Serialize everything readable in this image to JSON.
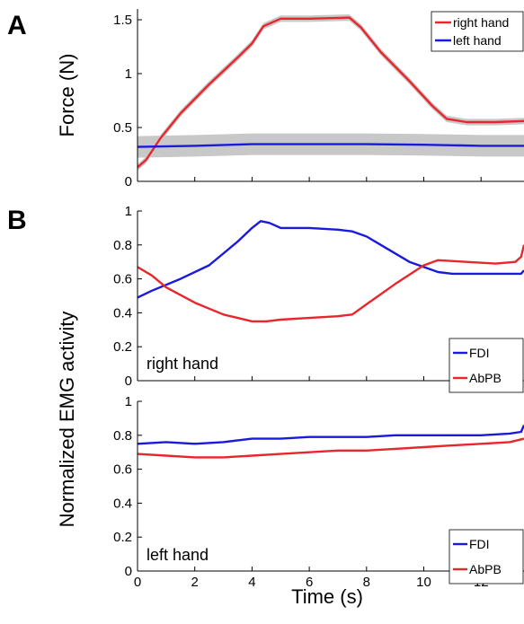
{
  "figure": {
    "panel_a_letter": "A",
    "panel_b_letter": "B",
    "shared_ylabel_b": "Normalized EMG activity",
    "shared_xlabel": "Time (s)"
  },
  "colors": {
    "red": "#e8262b",
    "blue": "#1a1adc",
    "band": "#c8c8c8"
  },
  "chart_data": [
    {
      "id": "force",
      "type": "line",
      "ylabel": "Force (N)",
      "xlabel": "",
      "xlim": [
        0,
        13.5
      ],
      "ylim": [
        0,
        1.6
      ],
      "yticks": [
        0,
        0.5,
        1,
        1.5
      ],
      "ytick_labels": [
        "0",
        "0.5",
        "1",
        "1.5"
      ],
      "xticks": [
        0,
        2,
        4,
        6,
        8,
        10,
        12
      ],
      "legend_position": "top-right",
      "series": [
        {
          "name": "right hand",
          "color": "red",
          "band_width": 0.03,
          "points": [
            [
              0,
              0.13
            ],
            [
              0.3,
              0.2
            ],
            [
              0.8,
              0.4
            ],
            [
              1.5,
              0.63
            ],
            [
              2.5,
              0.9
            ],
            [
              3.5,
              1.15
            ],
            [
              4.0,
              1.28
            ],
            [
              4.4,
              1.44
            ],
            [
              5.0,
              1.51
            ],
            [
              6.0,
              1.51
            ],
            [
              7.4,
              1.52
            ],
            [
              7.8,
              1.43
            ],
            [
              8.5,
              1.2
            ],
            [
              9.5,
              0.93
            ],
            [
              10.3,
              0.7
            ],
            [
              10.8,
              0.58
            ],
            [
              11.5,
              0.55
            ],
            [
              12.5,
              0.55
            ],
            [
              13.5,
              0.56
            ]
          ]
        },
        {
          "name": "left hand",
          "color": "blue",
          "band_width": 0.1,
          "points": [
            [
              0,
              0.32
            ],
            [
              2,
              0.33
            ],
            [
              4,
              0.345
            ],
            [
              6,
              0.345
            ],
            [
              8,
              0.345
            ],
            [
              10,
              0.34
            ],
            [
              12,
              0.33
            ],
            [
              13.5,
              0.33
            ]
          ]
        }
      ]
    },
    {
      "id": "emg-right",
      "type": "line",
      "inner_label": "right hand",
      "xlim": [
        0,
        13.5
      ],
      "ylim": [
        0,
        1
      ],
      "yticks": [
        0,
        0.2,
        0.4,
        0.6,
        0.8,
        1
      ],
      "ytick_labels": [
        "0",
        "0.2",
        "0.4",
        "0.6",
        "0.8",
        "1"
      ],
      "xticks": [
        0,
        2,
        4,
        6,
        8,
        10,
        12
      ],
      "legend_position": "bottom-right",
      "series": [
        {
          "name": "FDI",
          "color": "blue",
          "points": [
            [
              0,
              0.49
            ],
            [
              0.5,
              0.53
            ],
            [
              1.5,
              0.6
            ],
            [
              2.5,
              0.68
            ],
            [
              3.5,
              0.82
            ],
            [
              4.0,
              0.9
            ],
            [
              4.3,
              0.94
            ],
            [
              4.6,
              0.93
            ],
            [
              5.0,
              0.9
            ],
            [
              6.0,
              0.9
            ],
            [
              7.0,
              0.89
            ],
            [
              7.5,
              0.88
            ],
            [
              8.0,
              0.85
            ],
            [
              8.5,
              0.8
            ],
            [
              9.5,
              0.7
            ],
            [
              10.5,
              0.64
            ],
            [
              11.0,
              0.63
            ],
            [
              12.0,
              0.63
            ],
            [
              13.4,
              0.63
            ],
            [
              13.5,
              0.65
            ]
          ]
        },
        {
          "name": "AbPB",
          "color": "red",
          "points": [
            [
              0,
              0.67
            ],
            [
              0.5,
              0.62
            ],
            [
              1.0,
              0.55
            ],
            [
              2.0,
              0.46
            ],
            [
              3.0,
              0.39
            ],
            [
              3.5,
              0.37
            ],
            [
              4.0,
              0.35
            ],
            [
              4.5,
              0.35
            ],
            [
              5.0,
              0.36
            ],
            [
              6.0,
              0.37
            ],
            [
              7.0,
              0.38
            ],
            [
              7.5,
              0.39
            ],
            [
              8.0,
              0.45
            ],
            [
              9.0,
              0.57
            ],
            [
              10.0,
              0.68
            ],
            [
              10.5,
              0.71
            ],
            [
              11.5,
              0.7
            ],
            [
              12.5,
              0.69
            ],
            [
              13.2,
              0.7
            ],
            [
              13.4,
              0.73
            ],
            [
              13.5,
              0.8
            ]
          ]
        }
      ]
    },
    {
      "id": "emg-left",
      "type": "line",
      "inner_label": "left hand",
      "xlim": [
        0,
        13.5
      ],
      "ylim": [
        0,
        1
      ],
      "yticks": [
        0,
        0.2,
        0.4,
        0.6,
        0.8,
        1
      ],
      "ytick_labels": [
        "0",
        "0.2",
        "0.4",
        "0.6",
        "0.8",
        "1"
      ],
      "xticks": [
        0,
        2,
        4,
        6,
        8,
        10,
        12
      ],
      "xtick_labels": [
        "0",
        "2",
        "4",
        "6",
        "8",
        "10",
        "12"
      ],
      "legend_position": "bottom-right",
      "series": [
        {
          "name": "FDI",
          "color": "blue",
          "points": [
            [
              0,
              0.75
            ],
            [
              1,
              0.76
            ],
            [
              2,
              0.75
            ],
            [
              3,
              0.76
            ],
            [
              4,
              0.78
            ],
            [
              5,
              0.78
            ],
            [
              6,
              0.79
            ],
            [
              7,
              0.79
            ],
            [
              8,
              0.79
            ],
            [
              9,
              0.8
            ],
            [
              10,
              0.8
            ],
            [
              11,
              0.8
            ],
            [
              12,
              0.8
            ],
            [
              13,
              0.81
            ],
            [
              13.4,
              0.82
            ],
            [
              13.5,
              0.86
            ]
          ]
        },
        {
          "name": "AbPB",
          "color": "red",
          "points": [
            [
              0,
              0.69
            ],
            [
              1,
              0.68
            ],
            [
              2,
              0.67
            ],
            [
              3,
              0.67
            ],
            [
              4,
              0.68
            ],
            [
              5,
              0.69
            ],
            [
              6,
              0.7
            ],
            [
              7,
              0.71
            ],
            [
              8,
              0.71
            ],
            [
              9,
              0.72
            ],
            [
              10,
              0.73
            ],
            [
              11,
              0.74
            ],
            [
              12,
              0.75
            ],
            [
              13,
              0.76
            ],
            [
              13.5,
              0.78
            ]
          ]
        }
      ]
    }
  ]
}
